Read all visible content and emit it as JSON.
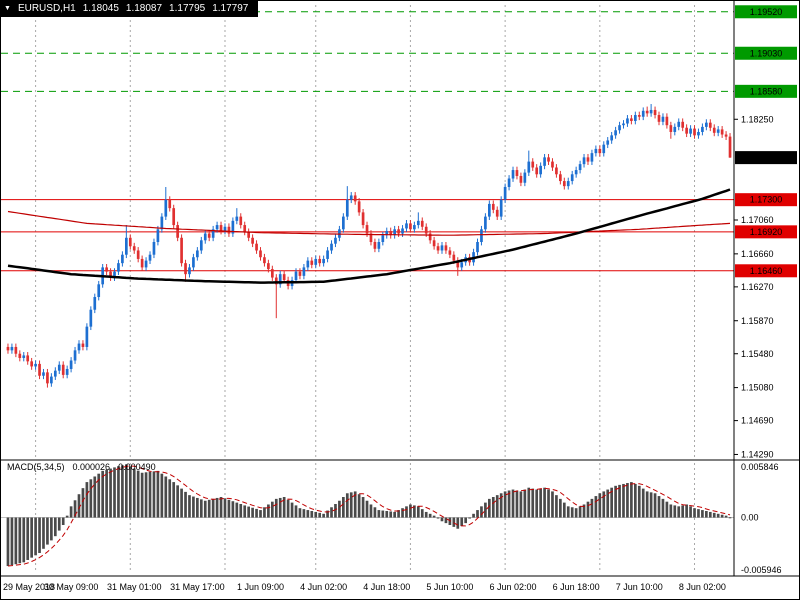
{
  "header": {
    "symbol_period": "EURUSD,H1",
    "open": "1.18045",
    "high": "1.18087",
    "low": "1.17795",
    "close": "1.17797"
  },
  "colors": {
    "bg": "#ffffff",
    "border": "#000000",
    "bull": "#1d6fd1",
    "bear": "#e03030",
    "ma_black": "#000000",
    "ma_red": "#c00000",
    "green": "#009a00",
    "red": "#e00000",
    "badge_current": "#000000",
    "badge_text": "#ffffff",
    "grid": "#a8a8a8",
    "histogram": "#4a4a4a",
    "signal": "#c00000",
    "zero_line": "#c0c0c0",
    "axis_text": "#000000",
    "header_bg": "#000000",
    "header_text": "#ffffff"
  },
  "price_axis": {
    "ticks": [
      {
        "label": "1.18250",
        "price": 1.1825
      },
      {
        "label": "1.17060",
        "price": 1.1706
      },
      {
        "label": "1.16660",
        "price": 1.1666
      },
      {
        "label": "1.16270",
        "price": 1.1627
      },
      {
        "label": "1.15870",
        "price": 1.1587
      },
      {
        "label": "1.15480",
        "price": 1.1548
      },
      {
        "label": "1.15080",
        "price": 1.1508
      },
      {
        "label": "1.14690",
        "price": 1.1469
      },
      {
        "label": "1.14290",
        "price": 1.1429
      }
    ]
  },
  "levels": [
    {
      "label": "1.19520",
      "price": 1.1952,
      "type": "resistance",
      "style": "dashed",
      "color_key": "green"
    },
    {
      "label": "1.19030",
      "price": 1.1903,
      "type": "resistance",
      "style": "dashed",
      "color_key": "green"
    },
    {
      "label": "1.18580",
      "price": 1.1858,
      "type": "resistance",
      "style": "dashed",
      "color_key": "green"
    },
    {
      "label": "1.17300",
      "price": 1.173,
      "type": "support",
      "style": "solid",
      "color_key": "red"
    },
    {
      "label": "1.16920",
      "price": 1.1692,
      "type": "support",
      "style": "solid",
      "color_key": "red"
    },
    {
      "label": "1.16460",
      "price": 1.1646,
      "type": "support",
      "style": "solid",
      "color_key": "red"
    }
  ],
  "current_price": {
    "label": "1.17797",
    "price": 1.17797
  },
  "time_axis": {
    "labels": [
      {
        "text": "29 May 2018",
        "bar": 0
      },
      {
        "text": "30 May 09:00",
        "bar": 16
      },
      {
        "text": "31 May 01:00",
        "bar": 32
      },
      {
        "text": "31 May 17:00",
        "bar": 48
      },
      {
        "text": "1 Jun 09:00",
        "bar": 64
      },
      {
        "text": "4 Jun 02:00",
        "bar": 80
      },
      {
        "text": "4 Jun 18:00",
        "bar": 96
      },
      {
        "text": "5 Jun 10:00",
        "bar": 112
      },
      {
        "text": "6 Jun 02:00",
        "bar": 128
      },
      {
        "text": "6 Jun 18:00",
        "bar": 144
      },
      {
        "text": "7 Jun 10:00",
        "bar": 160
      },
      {
        "text": "8 Jun 02:00",
        "bar": 176
      }
    ]
  },
  "separators": {
    "bars": [
      7,
      31,
      55,
      78,
      102,
      126,
      150,
      174
    ]
  },
  "chart_data": {
    "type": "candlestick",
    "title": "EURUSD,H1",
    "ylim": [
      1.1426,
      1.196
    ],
    "bars": 184,
    "candles": {
      "first_open": 1.1556,
      "default_wick": 0.0004,
      "closes": [
        1.1552,
        1.1556,
        1.1548,
        1.1543,
        1.1546,
        1.1539,
        1.1533,
        1.1536,
        1.1522,
        1.1526,
        1.1513,
        1.1521,
        1.1528,
        1.1535,
        1.1523,
        1.153,
        1.154,
        1.1552,
        1.156,
        1.1556,
        1.158,
        1.16,
        1.1615,
        1.163,
        1.165,
        1.1645,
        1.1638,
        1.1645,
        1.1655,
        1.1665,
        1.1685,
        1.1675,
        1.167,
        1.166,
        1.165,
        1.1658,
        1.1665,
        1.168,
        1.1695,
        1.171,
        1.173,
        1.172,
        1.17,
        1.1685,
        1.1655,
        1.1642,
        1.165,
        1.1662,
        1.167,
        1.1682,
        1.169,
        1.1685,
        1.1695,
        1.17,
        1.1693,
        1.1698,
        1.169,
        1.1705,
        1.171,
        1.17,
        1.1692,
        1.1685,
        1.1678,
        1.167,
        1.1662,
        1.1655,
        1.1648,
        1.1638,
        1.163,
        1.1642,
        1.1635,
        1.1628,
        1.1635,
        1.1645,
        1.164,
        1.165,
        1.1658,
        1.1653,
        1.166,
        1.1655,
        1.166,
        1.167,
        1.1678,
        1.1685,
        1.1695,
        1.171,
        1.173,
        1.1735,
        1.1728,
        1.1715,
        1.17,
        1.169,
        1.168,
        1.1672,
        1.168,
        1.1688,
        1.1693,
        1.1688,
        1.1695,
        1.169,
        1.1696,
        1.1702,
        1.1695,
        1.17,
        1.1705,
        1.1698,
        1.169,
        1.1682,
        1.1675,
        1.167,
        1.1676,
        1.167,
        1.1665,
        1.1658,
        1.165,
        1.1656,
        1.1662,
        1.1656,
        1.1668,
        1.168,
        1.1695,
        1.171,
        1.1725,
        1.1718,
        1.171,
        1.173,
        1.1745,
        1.1755,
        1.1765,
        1.1758,
        1.175,
        1.1762,
        1.1775,
        1.1768,
        1.176,
        1.177,
        1.178,
        1.1775,
        1.1768,
        1.176,
        1.1752,
        1.1746,
        1.1752,
        1.176,
        1.1765,
        1.1772,
        1.178,
        1.1775,
        1.1785,
        1.179,
        1.1785,
        1.1795,
        1.18,
        1.1806,
        1.1812,
        1.1818,
        1.182,
        1.1826,
        1.1823,
        1.183,
        1.1828,
        1.1835,
        1.1832,
        1.1836,
        1.183,
        1.1822,
        1.1828,
        1.1818,
        1.181,
        1.1816,
        1.1822,
        1.1815,
        1.1808,
        1.1814,
        1.1806,
        1.181,
        1.1816,
        1.1821,
        1.1815,
        1.1809,
        1.1813,
        1.1807,
        1.18045,
        1.17797
      ],
      "wick_overrides": {
        "10": {
          "low": 1.1508
        },
        "30": {
          "high": 1.17
        },
        "40": {
          "high": 1.1745
        },
        "45": {
          "low": 1.1633
        },
        "58": {
          "high": 1.172
        },
        "68": {
          "low": 1.159
        },
        "86": {
          "high": 1.1746
        },
        "104": {
          "high": 1.1715
        },
        "114": {
          "low": 1.164
        },
        "132": {
          "high": 1.1788
        },
        "162": {
          "high": 1.184
        },
        "163": {
          "high": 1.1843
        },
        "168": {
          "low": 1.1802
        },
        "183": {
          "open": 1.18045,
          "high": 1.18087,
          "low": 1.17795
        }
      }
    },
    "overlays": [
      {
        "name": "ma-red",
        "color_key": "ma_red",
        "width": 1.2,
        "waypoints": [
          [
            0,
            1.1716
          ],
          [
            20,
            1.1702
          ],
          [
            40,
            1.1696
          ],
          [
            64,
            1.1691
          ],
          [
            88,
            1.1689
          ],
          [
            112,
            1.1688
          ],
          [
            136,
            1.169
          ],
          [
            160,
            1.1695
          ],
          [
            176,
            1.17
          ],
          [
            183,
            1.1702
          ]
        ]
      },
      {
        "name": "ma-black",
        "color_key": "ma_black",
        "width": 2.5,
        "waypoints": [
          [
            0,
            1.1652
          ],
          [
            16,
            1.1642
          ],
          [
            32,
            1.1637
          ],
          [
            48,
            1.1634
          ],
          [
            64,
            1.1632
          ],
          [
            80,
            1.1633
          ],
          [
            96,
            1.1642
          ],
          [
            112,
            1.1655
          ],
          [
            128,
            1.1671
          ],
          [
            144,
            1.169
          ],
          [
            160,
            1.1711
          ],
          [
            176,
            1.1731
          ],
          [
            183,
            1.1742
          ]
        ]
      }
    ],
    "macd": {
      "label": "MACD(5,34,5)",
      "value": "0.000026",
      "signal_value": "0.000490",
      "ylim": [
        -0.005946,
        0.005846
      ],
      "axis_labels": [
        {
          "text": "0.005846",
          "v": 0.005846
        },
        {
          "text": "0.00",
          "v": 0
        },
        {
          "text": "-0.005946",
          "v": -0.005946
        }
      ],
      "signal_period": 5,
      "waypoints": [
        [
          0,
          -0.0052
        ],
        [
          4,
          -0.0048
        ],
        [
          8,
          -0.0038
        ],
        [
          12,
          -0.002
        ],
        [
          14,
          -0.0008
        ],
        [
          16,
          0.0012
        ],
        [
          20,
          0.0038
        ],
        [
          24,
          0.005
        ],
        [
          28,
          0.0055
        ],
        [
          30,
          0.0057
        ],
        [
          34,
          0.0048
        ],
        [
          38,
          0.005
        ],
        [
          42,
          0.0038
        ],
        [
          46,
          0.0024
        ],
        [
          50,
          0.0018
        ],
        [
          54,
          0.0022
        ],
        [
          56,
          0.0019
        ],
        [
          60,
          0.0013
        ],
        [
          64,
          0.0008
        ],
        [
          66,
          0.0014
        ],
        [
          68,
          0.002
        ],
        [
          70,
          0.0022
        ],
        [
          72,
          0.0016
        ],
        [
          74,
          0.001
        ],
        [
          78,
          0.0006
        ],
        [
          80,
          0.0004
        ],
        [
          84,
          0.0018
        ],
        [
          86,
          0.0026
        ],
        [
          88,
          0.0028
        ],
        [
          90,
          0.0022
        ],
        [
          92,
          0.0014
        ],
        [
          94,
          0.0008
        ],
        [
          98,
          0.0006
        ],
        [
          100,
          0.001
        ],
        [
          102,
          0.0014
        ],
        [
          104,
          0.0012
        ],
        [
          106,
          0.0006
        ],
        [
          108,
          0.0002
        ],
        [
          110,
          -0.0004
        ],
        [
          112,
          -0.0008
        ],
        [
          114,
          -0.0012
        ],
        [
          116,
          -0.0006
        ],
        [
          118,
          0.0004
        ],
        [
          120,
          0.0012
        ],
        [
          122,
          0.002
        ],
        [
          124,
          0.0024
        ],
        [
          126,
          0.0028
        ],
        [
          128,
          0.003
        ],
        [
          130,
          0.0028
        ],
        [
          132,
          0.0032
        ],
        [
          134,
          0.003
        ],
        [
          136,
          0.0032
        ],
        [
          138,
          0.0028
        ],
        [
          140,
          0.002
        ],
        [
          142,
          0.0012
        ],
        [
          144,
          0.001
        ],
        [
          146,
          0.0014
        ],
        [
          148,
          0.002
        ],
        [
          150,
          0.0026
        ],
        [
          152,
          0.003
        ],
        [
          154,
          0.0034
        ],
        [
          156,
          0.0036
        ],
        [
          158,
          0.0038
        ],
        [
          160,
          0.0034
        ],
        [
          162,
          0.0028
        ],
        [
          164,
          0.0026
        ],
        [
          166,
          0.002
        ],
        [
          168,
          0.0014
        ],
        [
          170,
          0.0012
        ],
        [
          172,
          0.0014
        ],
        [
          174,
          0.001
        ],
        [
          176,
          0.0008
        ],
        [
          178,
          0.0006
        ],
        [
          180,
          0.0004
        ],
        [
          182,
          0.0002
        ],
        [
          183,
          2.6e-05
        ]
      ]
    }
  }
}
